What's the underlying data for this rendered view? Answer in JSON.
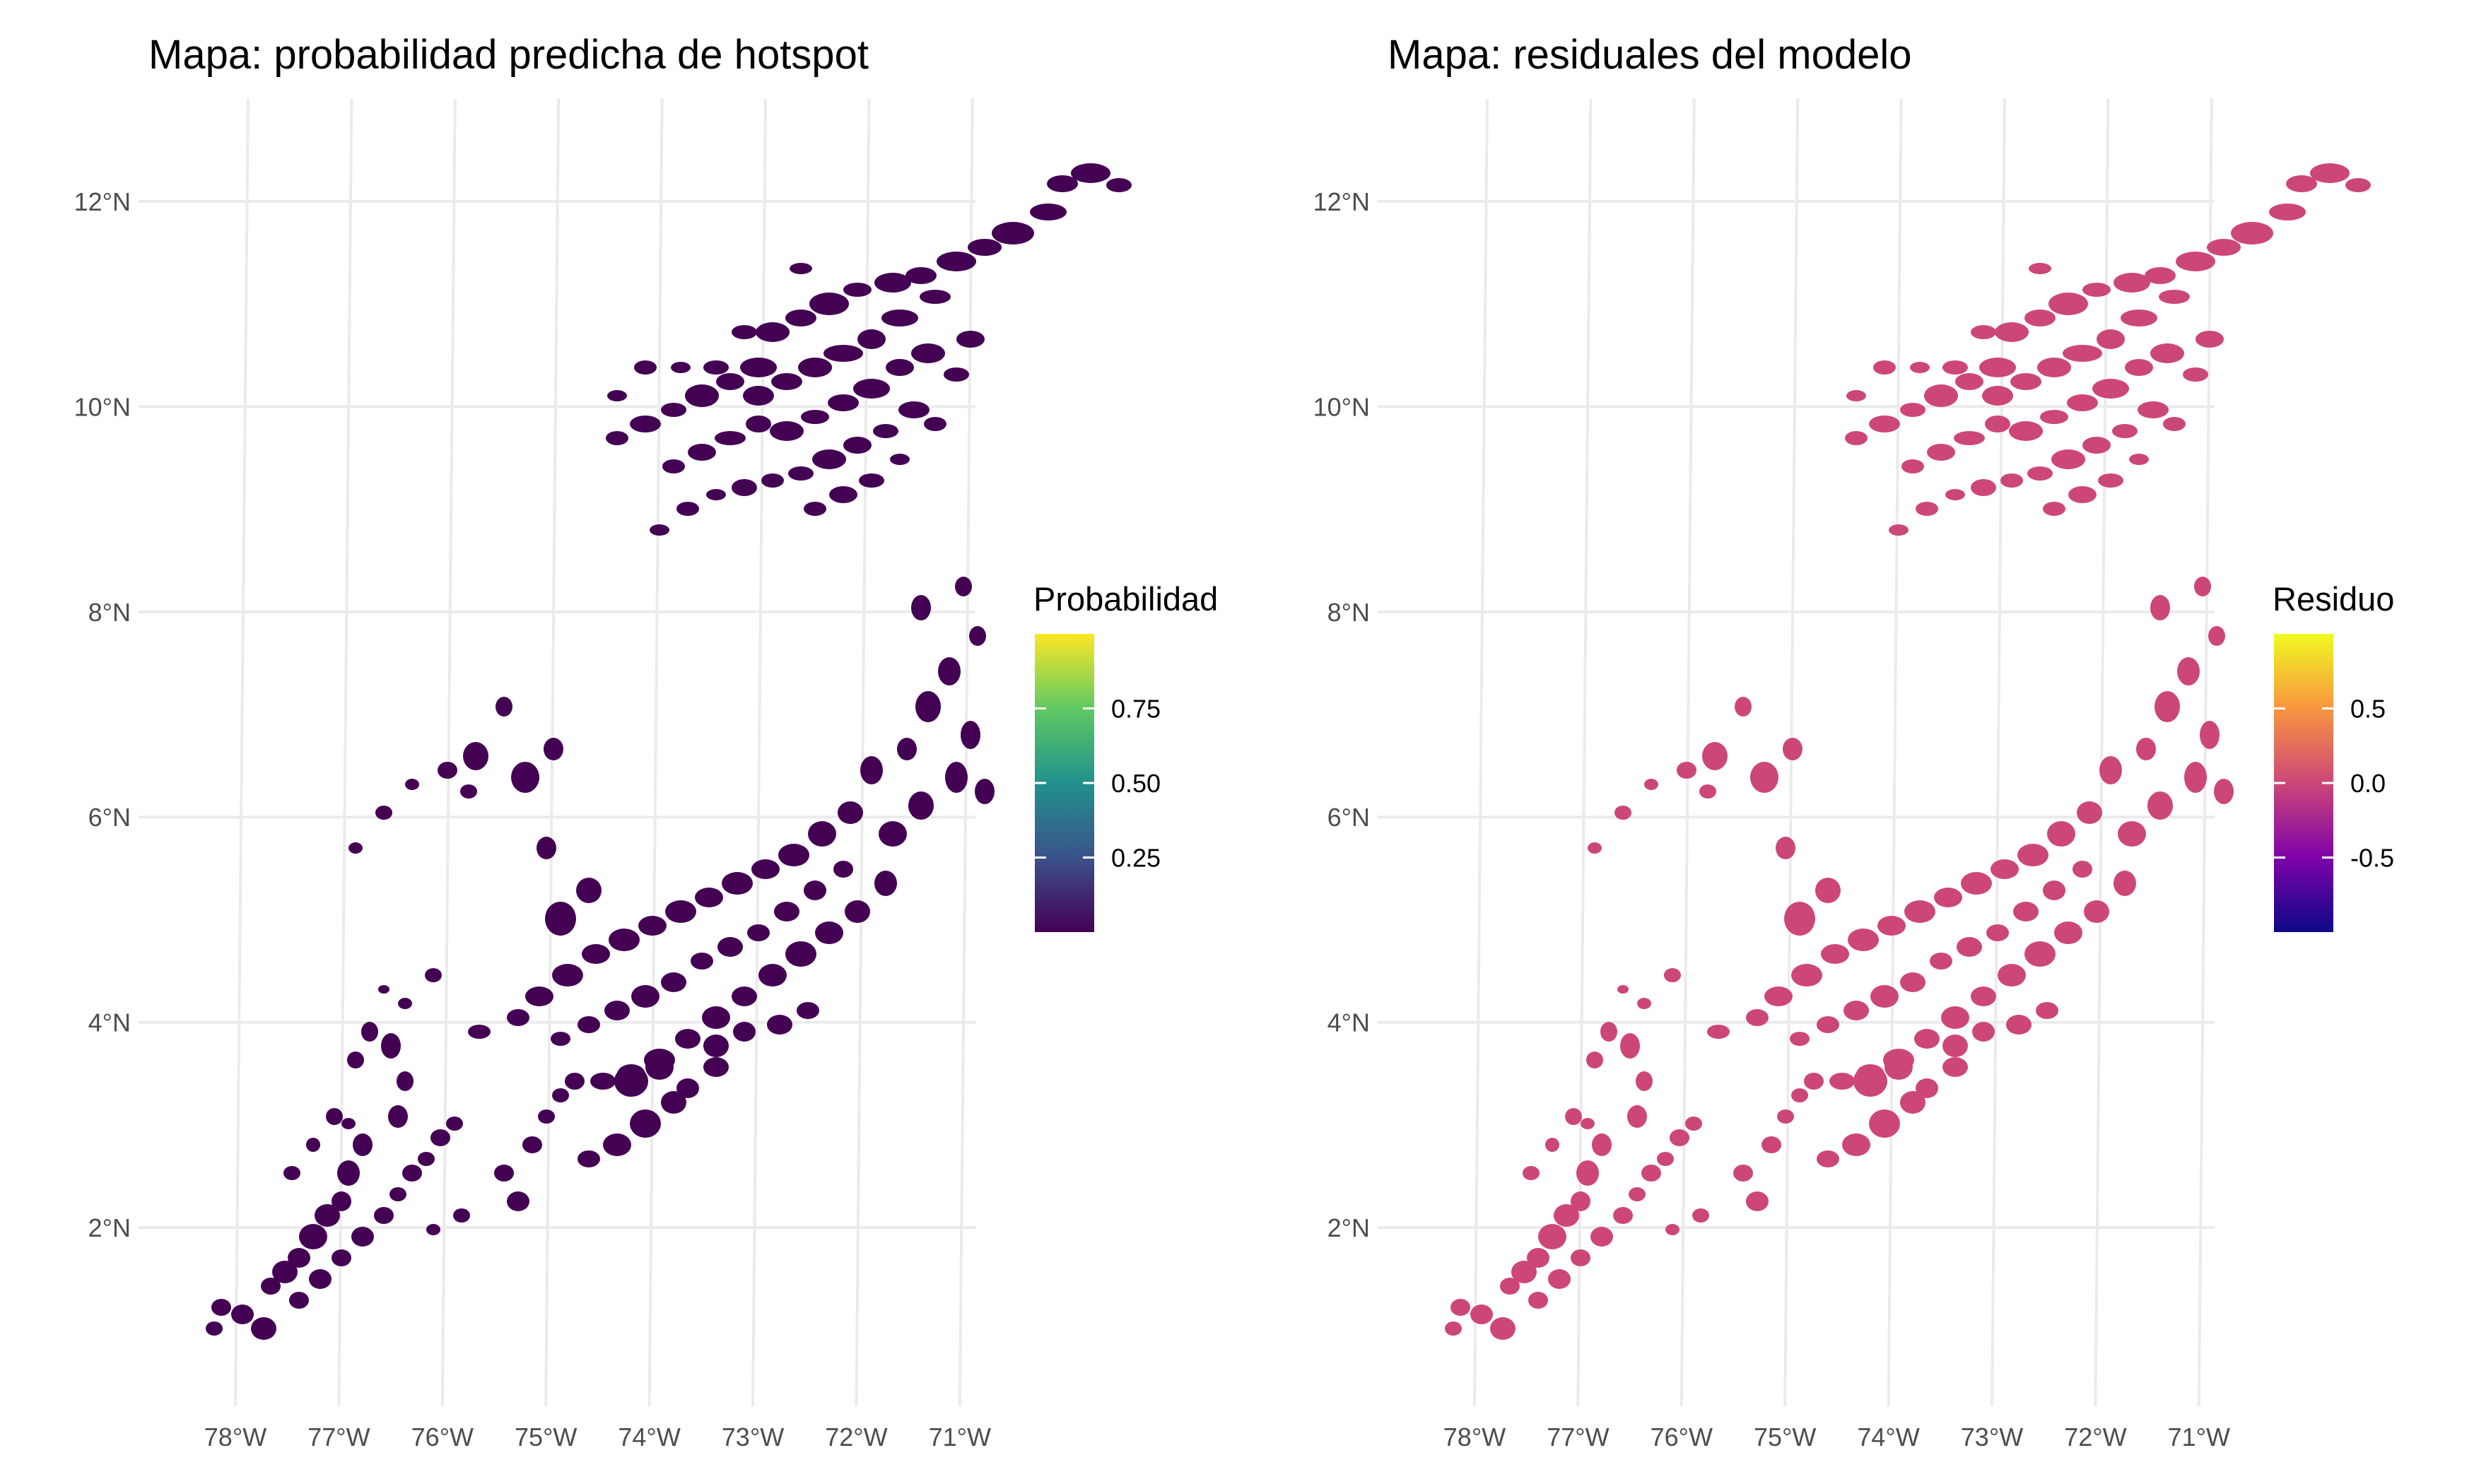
{
  "chart_data": [
    {
      "type": "map",
      "title": "Mapa: probabilidad predicha de hotspot",
      "x_ticks": [
        "78°W",
        "77°W",
        "76°W",
        "75°W",
        "74°W",
        "73°W",
        "72°W",
        "71°W"
      ],
      "y_ticks": [
        "2°N",
        "4°N",
        "6°N",
        "8°N",
        "10°N",
        "12°N"
      ],
      "x_values": [
        -78,
        -77,
        -76,
        -75,
        -74,
        -73,
        -72,
        -71
      ],
      "y_values": [
        2,
        4,
        6,
        8,
        10,
        12
      ],
      "xlim": [
        -78.5,
        -71.2
      ],
      "ylim": [
        0.6,
        12.6
      ],
      "grid": true,
      "legend": {
        "title": "Probabilidad",
        "placement": "right",
        "labels": [
          "0.75",
          "0.50",
          "0.25"
        ],
        "values": [
          0.75,
          0.5,
          0.25
        ],
        "range": [
          0.0,
          1.0
        ],
        "colormap": "viridis",
        "colors": [
          "#440154",
          "#3b528b",
          "#21918c",
          "#5ec962",
          "#fde725"
        ]
      },
      "fill_color": "#440154"
    },
    {
      "type": "map",
      "title": "Mapa: residuales del modelo",
      "x_ticks": [
        "78°W",
        "77°W",
        "76°W",
        "75°W",
        "74°W",
        "73°W",
        "72°W",
        "71°W"
      ],
      "y_ticks": [
        "2°N",
        "4°N",
        "6°N",
        "8°N",
        "10°N",
        "12°N"
      ],
      "x_values": [
        -78,
        -77,
        -76,
        -75,
        -74,
        -73,
        -72,
        -71
      ],
      "y_values": [
        2,
        4,
        6,
        8,
        10,
        12
      ],
      "xlim": [
        -78.5,
        -71.2
      ],
      "ylim": [
        0.6,
        12.6
      ],
      "grid": true,
      "legend": {
        "title": "Residuo",
        "placement": "right",
        "labels": [
          "0.5",
          "0.0",
          "-0.5"
        ],
        "values": [
          0.5,
          0.0,
          -0.5
        ],
        "range": [
          -1.0,
          1.0
        ],
        "colormap": "plasma",
        "colors": [
          "#0d0887",
          "#7e03a8",
          "#cc4778",
          "#f89540",
          "#f0f921"
        ]
      },
      "fill_color": "#cc4778"
    }
  ]
}
